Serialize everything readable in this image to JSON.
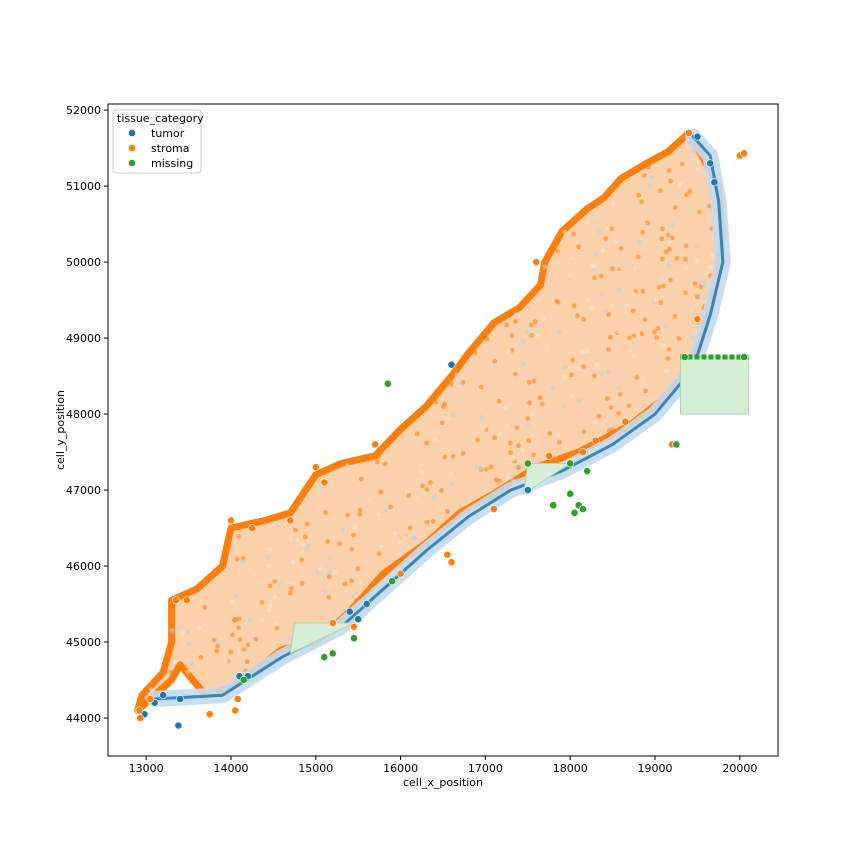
{
  "chart_data": {
    "type": "scatter",
    "title": "",
    "xlabel": "cell_x_position",
    "ylabel": "cell_y_position",
    "xlim": [
      12550,
      20450
    ],
    "ylim": [
      43500,
      52080
    ],
    "xticks": [
      13000,
      14000,
      15000,
      16000,
      17000,
      18000,
      19000,
      20000
    ],
    "yticks": [
      44000,
      45000,
      46000,
      47000,
      48000,
      49000,
      50000,
      51000,
      52000
    ],
    "xtick_labels": [
      "13000",
      "14000",
      "15000",
      "16000",
      "17000",
      "18000",
      "19000",
      "20000"
    ],
    "ytick_labels": [
      "44000",
      "45000",
      "46000",
      "47000",
      "48000",
      "49000",
      "50000",
      "51000",
      "52000"
    ],
    "grid": false,
    "legend": {
      "title": "tissue_category",
      "placement": "top-left",
      "entries": [
        {
          "name": "tumor",
          "color": "#1f77b4"
        },
        {
          "name": "stroma",
          "color": "#ff7f0e"
        },
        {
          "name": "missing",
          "color": "#2ca02c"
        }
      ]
    },
    "tissue_outline": [
      [
        12900,
        44100
      ],
      [
        13100,
        44300
      ],
      [
        13300,
        44500
      ],
      [
        13400,
        44700
      ],
      [
        13700,
        44300
      ],
      [
        14000,
        44400
      ],
      [
        14200,
        44550
      ],
      [
        14600,
        44900
      ],
      [
        15000,
        45000
      ],
      [
        15400,
        45400
      ],
      [
        15800,
        45900
      ],
      [
        16300,
        46300
      ],
      [
        16700,
        46700
      ],
      [
        17100,
        46950
      ],
      [
        17600,
        47300
      ],
      [
        18100,
        47500
      ],
      [
        18700,
        47850
      ],
      [
        19100,
        48200
      ],
      [
        19400,
        48600
      ],
      [
        19550,
        49000
      ],
      [
        19700,
        49600
      ],
      [
        19800,
        50300
      ],
      [
        19750,
        51000
      ],
      [
        19600,
        51300
      ],
      [
        19400,
        51700
      ],
      [
        19150,
        51450
      ],
      [
        18900,
        51300
      ],
      [
        18600,
        51100
      ],
      [
        18400,
        50850
      ],
      [
        18200,
        50700
      ],
      [
        17900,
        50400
      ],
      [
        17700,
        50000
      ],
      [
        17650,
        49700
      ],
      [
        17400,
        49400
      ],
      [
        17100,
        49200
      ],
      [
        16800,
        48800
      ],
      [
        16600,
        48500
      ],
      [
        16300,
        48100
      ],
      [
        16000,
        47800
      ],
      [
        15700,
        47450
      ],
      [
        15300,
        47350
      ],
      [
        15000,
        47200
      ],
      [
        14700,
        46700
      ],
      [
        14400,
        46600
      ],
      [
        14000,
        46500
      ],
      [
        13900,
        46000
      ],
      [
        13600,
        45700
      ],
      [
        13300,
        45550
      ],
      [
        13300,
        45000
      ],
      [
        13200,
        44600
      ],
      [
        12950,
        44300
      ]
    ],
    "tumor_band": [
      [
        13100,
        44250
      ],
      [
        13900,
        44300
      ],
      [
        14600,
        44800
      ],
      [
        15300,
        45200
      ],
      [
        15800,
        45700
      ],
      [
        16300,
        46200
      ],
      [
        16800,
        46650
      ],
      [
        17300,
        47000
      ],
      [
        17900,
        47250
      ],
      [
        18500,
        47600
      ],
      [
        19000,
        48000
      ],
      [
        19450,
        48600
      ],
      [
        19650,
        49300
      ],
      [
        19800,
        50000
      ],
      [
        19750,
        50800
      ],
      [
        19650,
        51400
      ],
      [
        19450,
        51650
      ]
    ],
    "missing_regions": [
      {
        "kind": "rect",
        "x": [
          19300,
          20100
        ],
        "y": [
          48000,
          48750
        ]
      },
      {
        "kind": "triangle",
        "points": [
          [
            17450,
            46950
          ],
          [
            18000,
            47350
          ],
          [
            17500,
            47350
          ]
        ]
      },
      {
        "kind": "triangle",
        "points": [
          [
            14700,
            44850
          ],
          [
            15450,
            45250
          ],
          [
            14750,
            45250
          ]
        ]
      }
    ],
    "series": [
      {
        "name": "tumor",
        "color": "#1f77b4",
        "points": [
          [
            12980,
            44050
          ],
          [
            13380,
            43900
          ],
          [
            13400,
            44250
          ],
          [
            13200,
            44300
          ],
          [
            14100,
            44550
          ],
          [
            14200,
            44550
          ],
          [
            15500,
            45300
          ],
          [
            15600,
            45500
          ],
          [
            16600,
            48650
          ],
          [
            19500,
            51650
          ],
          [
            19650,
            51300
          ],
          [
            19700,
            51050
          ],
          [
            15850,
            48400
          ],
          [
            13100,
            44200
          ],
          [
            15400,
            45400
          ],
          [
            17500,
            47000
          ]
        ]
      },
      {
        "name": "stroma",
        "color": "#ff7f0e",
        "points": [
          [
            12920,
            44100
          ],
          [
            12930,
            44000
          ],
          [
            13050,
            44250
          ],
          [
            13350,
            45550
          ],
          [
            13480,
            45550
          ],
          [
            13750,
            44050
          ],
          [
            14050,
            44100
          ],
          [
            14080,
            44250
          ],
          [
            14000,
            46600
          ],
          [
            14250,
            46500
          ],
          [
            15000,
            47300
          ],
          [
            15700,
            47600
          ],
          [
            16550,
            46150
          ],
          [
            16600,
            46050
          ],
          [
            17100,
            46750
          ],
          [
            17750,
            47450
          ],
          [
            18150,
            47500
          ],
          [
            18300,
            47650
          ],
          [
            18650,
            47900
          ],
          [
            19200,
            47600
          ],
          [
            19500,
            49250
          ],
          [
            20000,
            51400
          ],
          [
            20050,
            51430
          ],
          [
            19400,
            51700
          ],
          [
            17600,
            50000
          ],
          [
            15200,
            45250
          ],
          [
            15450,
            45200
          ],
          [
            16000,
            45900
          ],
          [
            14700,
            46600
          ],
          [
            15100,
            47100
          ]
        ]
      },
      {
        "name": "missing",
        "color": "#2ca02c",
        "points": [
          [
            14150,
            44500
          ],
          [
            15200,
            44850
          ],
          [
            15100,
            44800
          ],
          [
            15450,
            45050
          ],
          [
            15850,
            48400
          ],
          [
            15900,
            45800
          ],
          [
            17800,
            46800
          ],
          [
            18000,
            46950
          ],
          [
            18050,
            46700
          ],
          [
            18100,
            46800
          ],
          [
            18150,
            46750
          ],
          [
            18200,
            47250
          ],
          [
            19250,
            47600
          ],
          [
            19350,
            48750
          ],
          [
            20050,
            48750
          ],
          [
            17500,
            47350
          ],
          [
            18000,
            47350
          ]
        ]
      }
    ]
  }
}
